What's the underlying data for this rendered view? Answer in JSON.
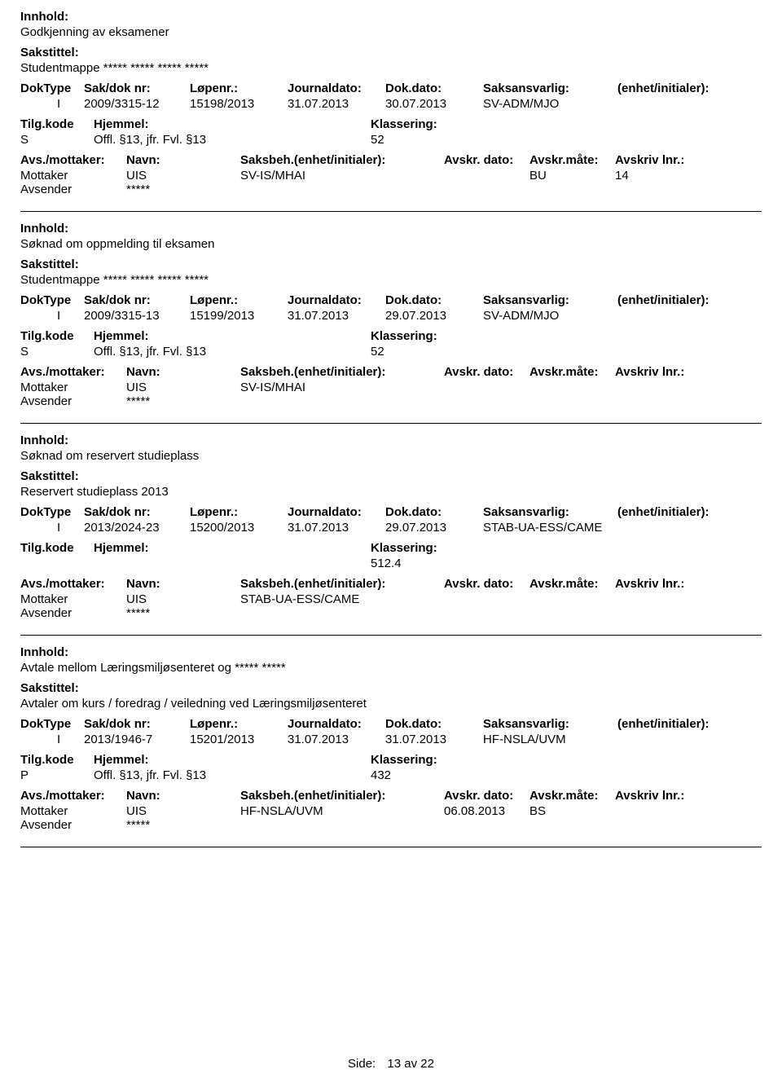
{
  "labels": {
    "innhold": "Innhold:",
    "sakstittel": "Sakstittel:",
    "doktype": "DokType",
    "sakdok": "Sak/dok nr:",
    "lopenr": "Løpenr.:",
    "journaldato": "Journaldato:",
    "dokdato": "Dok.dato:",
    "saksansvarlig": "Saksansvarlig:",
    "enhet": "(enhet/initialer):",
    "tilgkode": "Tilg.kode",
    "hjemmel": "Hjemmel:",
    "klassering": "Klassering:",
    "avsmottaker": "Avs./mottaker:",
    "navn": "Navn:",
    "saksbeh": "Saksbeh.(enhet/initialer):",
    "avskrdato": "Avskr. dato:",
    "avskrmate": "Avskr.måte:",
    "avskrlnr": "Avskriv lnr.:",
    "mottaker": "Mottaker",
    "avsender": "Avsender",
    "side": "Side:",
    "av": "av"
  },
  "records": [
    {
      "innhold": "Godkjenning av eksamener",
      "sakstittel": "Studentmappe ***** ***** ***** *****",
      "doktype": "I",
      "sakdok": "2009/3315-12",
      "lopenr": "15198/2013",
      "journaldato": "31.07.2013",
      "dokdato": "30.07.2013",
      "saksansvarlig": "SV-ADM/MJO",
      "enhet": "",
      "tilgkode": "S",
      "hjemmel": "Offl. §13, jfr. Fvl. §13",
      "klassering": "52",
      "mottaker_navn": "UIS",
      "saksbeh": "SV-IS/MHAI",
      "avskrdato": "",
      "avskrmate": "BU",
      "avskrlnr": "14",
      "avsender_navn": "*****"
    },
    {
      "innhold": "Søknad om oppmelding til eksamen",
      "sakstittel": "Studentmappe ***** ***** ***** *****",
      "doktype": "I",
      "sakdok": "2009/3315-13",
      "lopenr": "15199/2013",
      "journaldato": "31.07.2013",
      "dokdato": "29.07.2013",
      "saksansvarlig": "SV-ADM/MJO",
      "enhet": "",
      "tilgkode": "S",
      "hjemmel": "Offl. §13, jfr. Fvl. §13",
      "klassering": "52",
      "mottaker_navn": "UIS",
      "saksbeh": "SV-IS/MHAI",
      "avskrdato": "",
      "avskrmate": "",
      "avskrlnr": "",
      "avsender_navn": "*****"
    },
    {
      "innhold": "Søknad om reservert studieplass",
      "sakstittel": "Reservert studieplass 2013",
      "doktype": "I",
      "sakdok": "2013/2024-23",
      "lopenr": "15200/2013",
      "journaldato": "31.07.2013",
      "dokdato": "29.07.2013",
      "saksansvarlig": "STAB-UA-ESS/CAME",
      "enhet": "",
      "tilgkode": "",
      "hjemmel": "",
      "klassering": "512.4",
      "mottaker_navn": "UIS",
      "saksbeh": "STAB-UA-ESS/CAME",
      "avskrdato": "",
      "avskrmate": "",
      "avskrlnr": "",
      "avsender_navn": "*****"
    },
    {
      "innhold": "Avtale mellom Læringsmiljøsenteret og ***** *****",
      "sakstittel": "Avtaler om kurs / foredrag / veiledning ved Læringsmiljøsenteret",
      "doktype": "I",
      "sakdok": "2013/1946-7",
      "lopenr": "15201/2013",
      "journaldato": "31.07.2013",
      "dokdato": "31.07.2013",
      "saksansvarlig": "HF-NSLA/UVM",
      "enhet": "",
      "tilgkode": "P",
      "hjemmel": "Offl. §13, jfr. Fvl. §13",
      "klassering": "432",
      "mottaker_navn": "UIS",
      "saksbeh": "HF-NSLA/UVM",
      "avskrdato": "06.08.2013",
      "avskrmate": "BS",
      "avskrlnr": "",
      "avsender_navn": "*****"
    }
  ],
  "page": {
    "current": "13",
    "total": "22"
  }
}
